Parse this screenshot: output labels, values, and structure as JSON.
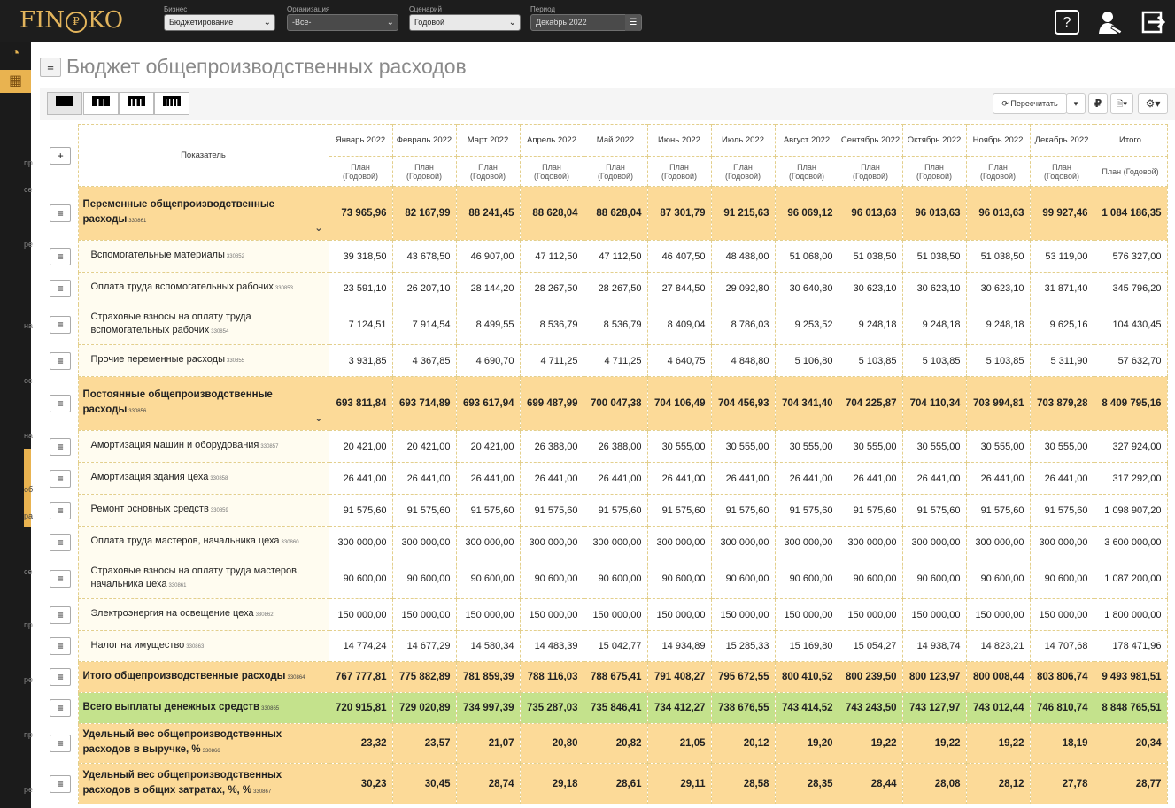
{
  "header": {
    "logo_text_left": "FIN",
    "logo_coin": "₽",
    "logo_text_right": "KO",
    "filters": [
      {
        "label": "Бизнес",
        "value": "Бюджетирование"
      },
      {
        "label": "Организация",
        "value": "-Все-"
      },
      {
        "label": "Сценарий",
        "value": "Годовой"
      },
      {
        "label": "Период",
        "value": "Декабрь 2022"
      }
    ],
    "icons": [
      "help-icon",
      "user-icon",
      "logout-icon"
    ],
    "help_glyph": "?"
  },
  "page": {
    "title": "Бюджет общепроизводственных расходов"
  },
  "toolbar": {
    "recalc_label": "Пересчитать",
    "currency": "₽"
  },
  "sidebar": {
    "labels": [
      "пр",
      "се",
      "ре",
      "на",
      "ос",
      "на",
      "об",
      "ра",
      "се",
      "пр",
      "ре",
      "пр",
      "ре"
    ]
  },
  "table": {
    "col_indicator": "Показатель",
    "months": [
      "Январь 2022",
      "Февраль 2022",
      "Март 2022",
      "Апрель 2022",
      "Май 2022",
      "Июнь 2022",
      "Июль 2022",
      "Август 2022",
      "Сентябрь 2022",
      "Октябрь 2022",
      "Ноябрь 2022",
      "Декабрь 2022",
      "Итого"
    ],
    "subhead": "План (Годовой)",
    "rows": [
      {
        "type": "grp",
        "name": "Переменные общепроизводственные расходы",
        "code": "330861",
        "values": [
          "73 965,96",
          "82 167,99",
          "88 241,45",
          "88 628,04",
          "88 628,04",
          "87 301,79",
          "91 215,63",
          "96 069,12",
          "96 013,63",
          "96 013,63",
          "96 013,63",
          "99 927,46",
          "1 084 186,35"
        ]
      },
      {
        "type": "item",
        "name": "Вспомогательные материалы",
        "code": "330852",
        "values": [
          "39 318,50",
          "43 678,50",
          "46 907,00",
          "47 112,50",
          "47 112,50",
          "46 407,50",
          "48 488,00",
          "51 068,00",
          "51 038,50",
          "51 038,50",
          "51 038,50",
          "53 119,00",
          "576 327,00"
        ]
      },
      {
        "type": "item",
        "name": "Оплата труда вспомогательных рабочих",
        "code": "330853",
        "values": [
          "23 591,10",
          "26 207,10",
          "28 144,20",
          "28 267,50",
          "28 267,50",
          "27 844,50",
          "29 092,80",
          "30 640,80",
          "30 623,10",
          "30 623,10",
          "30 623,10",
          "31 871,40",
          "345 796,20"
        ]
      },
      {
        "type": "item",
        "name": "Страховые взносы на оплату труда вспомогательных рабочих",
        "code": "330854",
        "values": [
          "7 124,51",
          "7 914,54",
          "8 499,55",
          "8 536,79",
          "8 536,79",
          "8 409,04",
          "8 786,03",
          "9 253,52",
          "9 248,18",
          "9 248,18",
          "9 248,18",
          "9 625,16",
          "104 430,45"
        ]
      },
      {
        "type": "item",
        "name": "Прочие переменные расходы",
        "code": "330855",
        "values": [
          "3 931,85",
          "4 367,85",
          "4 690,70",
          "4 711,25",
          "4 711,25",
          "4 640,75",
          "4 848,80",
          "5 106,80",
          "5 103,85",
          "5 103,85",
          "5 103,85",
          "5 311,90",
          "57 632,70"
        ]
      },
      {
        "type": "grp",
        "name": "Постоянные общепроизводственные расходы",
        "code": "330856",
        "values": [
          "693 811,84",
          "693 714,89",
          "693 617,94",
          "699 487,99",
          "700 047,38",
          "704 106,49",
          "704 456,93",
          "704 341,40",
          "704 225,87",
          "704 110,34",
          "703 994,81",
          "703 879,28",
          "8 409 795,16"
        ]
      },
      {
        "type": "item",
        "name": "Амортизация машин и оборудования",
        "code": "330857",
        "values": [
          "20 421,00",
          "20 421,00",
          "20 421,00",
          "26 388,00",
          "26 388,00",
          "30 555,00",
          "30 555,00",
          "30 555,00",
          "30 555,00",
          "30 555,00",
          "30 555,00",
          "30 555,00",
          "327 924,00"
        ]
      },
      {
        "type": "item",
        "name": "Амортизация здания цеха",
        "code": "330858",
        "values": [
          "26 441,00",
          "26 441,00",
          "26 441,00",
          "26 441,00",
          "26 441,00",
          "26 441,00",
          "26 441,00",
          "26 441,00",
          "26 441,00",
          "26 441,00",
          "26 441,00",
          "26 441,00",
          "317 292,00"
        ]
      },
      {
        "type": "item",
        "name": "Ремонт основных средств",
        "code": "330859",
        "values": [
          "91 575,60",
          "91 575,60",
          "91 575,60",
          "91 575,60",
          "91 575,60",
          "91 575,60",
          "91 575,60",
          "91 575,60",
          "91 575,60",
          "91 575,60",
          "91 575,60",
          "91 575,60",
          "1 098 907,20"
        ]
      },
      {
        "type": "item",
        "name": "Оплата труда мастеров, начальника цеха",
        "code": "330860",
        "values": [
          "300 000,00",
          "300 000,00",
          "300 000,00",
          "300 000,00",
          "300 000,00",
          "300 000,00",
          "300 000,00",
          "300 000,00",
          "300 000,00",
          "300 000,00",
          "300 000,00",
          "300 000,00",
          "3 600 000,00"
        ]
      },
      {
        "type": "item",
        "name": "Страховые взносы на оплату труда мастеров, начальника цеха",
        "code": "330861",
        "values": [
          "90 600,00",
          "90 600,00",
          "90 600,00",
          "90 600,00",
          "90 600,00",
          "90 600,00",
          "90 600,00",
          "90 600,00",
          "90 600,00",
          "90 600,00",
          "90 600,00",
          "90 600,00",
          "1 087 200,00"
        ]
      },
      {
        "type": "item",
        "name": "Электроэнергия на освещение цеха",
        "code": "330862",
        "values": [
          "150 000,00",
          "150 000,00",
          "150 000,00",
          "150 000,00",
          "150 000,00",
          "150 000,00",
          "150 000,00",
          "150 000,00",
          "150 000,00",
          "150 000,00",
          "150 000,00",
          "150 000,00",
          "1 800 000,00"
        ]
      },
      {
        "type": "item",
        "name": "Налог на имущество",
        "code": "330863",
        "values": [
          "14 774,24",
          "14 677,29",
          "14 580,34",
          "14 483,39",
          "15 042,77",
          "14 934,89",
          "15 285,33",
          "15 169,80",
          "15 054,27",
          "14 938,74",
          "14 823,21",
          "14 707,68",
          "178 471,96"
        ]
      },
      {
        "type": "total",
        "name": "Итого общепроизводственные расходы",
        "code": "330864",
        "values": [
          "767 777,81",
          "775 882,89",
          "781 859,39",
          "788 116,03",
          "788 675,41",
          "791 408,27",
          "795 672,55",
          "800 410,52",
          "800 239,50",
          "800 123,97",
          "800 008,44",
          "803 806,74",
          "9 493 981,51"
        ]
      },
      {
        "type": "green",
        "name": "Всего выплаты денежных средств",
        "code": "330865",
        "values": [
          "720 915,81",
          "729 020,89",
          "734 997,39",
          "735 287,03",
          "735 846,41",
          "734 412,27",
          "738 676,55",
          "743 414,52",
          "743 243,50",
          "743 127,97",
          "743 012,44",
          "746 810,74",
          "8 848 765,51"
        ]
      },
      {
        "type": "total",
        "name": "Удельный вес общепроизводственных расходов в выручке, %",
        "code": "330866",
        "values": [
          "23,32",
          "23,57",
          "21,07",
          "20,80",
          "20,82",
          "21,05",
          "20,12",
          "19,20",
          "19,22",
          "19,22",
          "19,22",
          "18,19",
          "20,34"
        ]
      },
      {
        "type": "total",
        "name": "Удельный вес общепроизводственных расходов в общих затратах, %, %",
        "code": "330867",
        "values": [
          "30,23",
          "30,45",
          "28,74",
          "29,18",
          "28,61",
          "29,11",
          "28,58",
          "28,35",
          "28,44",
          "28,08",
          "28,12",
          "27,78",
          "28,77"
        ]
      }
    ]
  },
  "colors": {
    "accent": "#e9b350",
    "group_row": "#fcda98",
    "green_row": "#c4e28c",
    "topbar": "#1d1d1d"
  }
}
